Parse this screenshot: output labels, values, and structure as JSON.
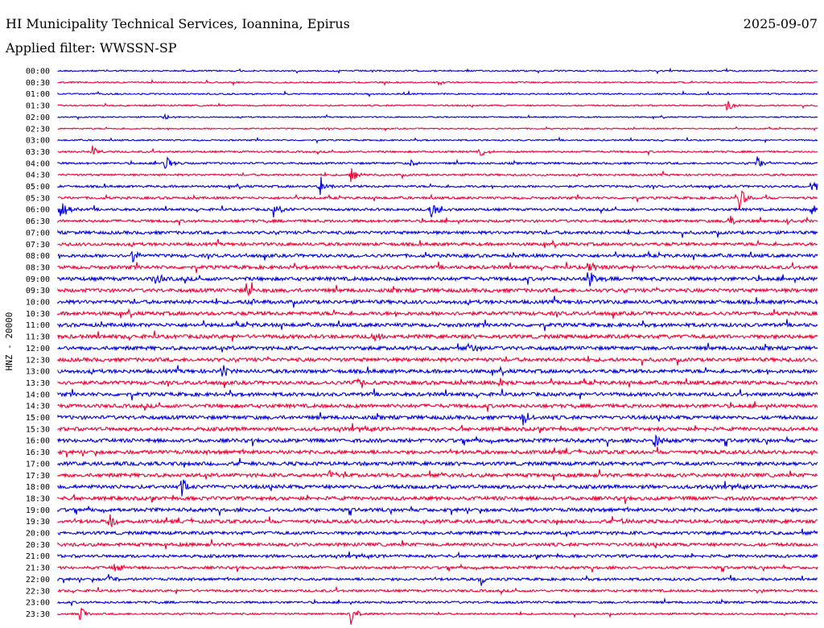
{
  "header": {
    "station": "HI Municipality Technical Services, Ioannina, Epirus",
    "date": "2025-09-07",
    "filter": "Applied filter: WWSSN-SP"
  },
  "colors": {
    "even_rows": "#0000dd",
    "odd_rows": "#ee0033",
    "background": "#ffffff",
    "text": "#000000"
  },
  "chart_data": {
    "type": "helicorder",
    "channel_label": "HNZ - 20000",
    "row_labels": [
      "00:00",
      "00:30",
      "01:00",
      "01:30",
      "02:00",
      "02:30",
      "03:00",
      "03:30",
      "04:00",
      "04:30",
      "05:00",
      "05:30",
      "06:00",
      "06:30",
      "07:00",
      "07:30",
      "08:00",
      "08:30",
      "09:00",
      "09:30",
      "10:00",
      "10:30",
      "11:00",
      "11:30",
      "12:00",
      "12:30",
      "13:00",
      "13:30",
      "14:00",
      "14:30",
      "15:00",
      "15:30",
      "16:00",
      "16:30",
      "17:00",
      "17:30",
      "18:00",
      "18:30",
      "19:00",
      "19:30",
      "20:00",
      "20:30",
      "21:00",
      "21:30",
      "22:00",
      "22:30",
      "23:00",
      "23:30"
    ],
    "row_color_pattern": [
      "even_rows",
      "odd_rows"
    ],
    "noise_level": [
      0.8,
      0.8,
      0.8,
      0.8,
      0.7,
      0.7,
      0.8,
      1.0,
      1.1,
      1.1,
      1.2,
      1.3,
      1.4,
      1.5,
      1.7,
      1.7,
      1.8,
      1.9,
      2.0,
      2.0,
      2.0,
      2.0,
      2.0,
      2.1,
      2.0,
      2.0,
      2.0,
      2.0,
      2.0,
      2.0,
      2.0,
      2.0,
      2.0,
      2.0,
      2.0,
      2.0,
      2.0,
      2.0,
      1.9,
      1.9,
      1.8,
      1.8,
      1.6,
      1.5,
      1.4,
      1.3,
      1.2,
      1.0
    ],
    "events": [
      {
        "row": 3,
        "t": 0.88,
        "amp": 10
      },
      {
        "row": 4,
        "t": 0.14,
        "amp": 4
      },
      {
        "row": 7,
        "t": 0.045,
        "amp": 8
      },
      {
        "row": 7,
        "t": 0.555,
        "amp": 9
      },
      {
        "row": 8,
        "t": 0.138,
        "amp": 16
      },
      {
        "row": 8,
        "t": 0.463,
        "amp": 6
      },
      {
        "row": 8,
        "t": 0.92,
        "amp": 10
      },
      {
        "row": 9,
        "t": 0.385,
        "amp": 12
      },
      {
        "row": 10,
        "t": 0.345,
        "amp": 15
      },
      {
        "row": 10,
        "t": 0.992,
        "amp": 12
      },
      {
        "row": 11,
        "t": 0.897,
        "amp": 16
      },
      {
        "row": 12,
        "t": 0.003,
        "amp": 18
      },
      {
        "row": 12,
        "t": 0.283,
        "amp": 12
      },
      {
        "row": 12,
        "t": 0.49,
        "amp": 14
      },
      {
        "row": 12,
        "t": 0.992,
        "amp": 9
      },
      {
        "row": 13,
        "t": 0.883,
        "amp": 10
      },
      {
        "row": 13,
        "t": 0.96,
        "amp": 7
      },
      {
        "row": 16,
        "t": 0.097,
        "amp": 9
      },
      {
        "row": 17,
        "t": 0.697,
        "amp": 8
      },
      {
        "row": 18,
        "t": 0.125,
        "amp": 12
      },
      {
        "row": 18,
        "t": 0.697,
        "amp": 16
      },
      {
        "row": 19,
        "t": 0.247,
        "amp": 14
      },
      {
        "row": 20,
        "t": 0.25,
        "amp": 10
      },
      {
        "row": 23,
        "t": 0.415,
        "amp": 9
      },
      {
        "row": 24,
        "t": 0.54,
        "amp": 9
      },
      {
        "row": 26,
        "t": 0.215,
        "amp": 10
      },
      {
        "row": 27,
        "t": 0.39,
        "amp": 9
      },
      {
        "row": 27,
        "t": 0.58,
        "amp": 8
      },
      {
        "row": 30,
        "t": 0.61,
        "amp": 13
      },
      {
        "row": 32,
        "t": 0.785,
        "amp": 12
      },
      {
        "row": 35,
        "t": 0.355,
        "amp": 10
      },
      {
        "row": 36,
        "t": 0.162,
        "amp": 12
      },
      {
        "row": 39,
        "t": 0.068,
        "amp": 12
      },
      {
        "row": 39,
        "t": 0.74,
        "amp": 8
      },
      {
        "row": 43,
        "t": 0.073,
        "amp": 9
      },
      {
        "row": 44,
        "t": 0.065,
        "amp": 10
      },
      {
        "row": 44,
        "t": 0.556,
        "amp": 10
      },
      {
        "row": 45,
        "t": 0.922,
        "amp": 6
      },
      {
        "row": 47,
        "t": 0.028,
        "amp": 14
      },
      {
        "row": 47,
        "t": 0.385,
        "amp": 16
      }
    ]
  }
}
